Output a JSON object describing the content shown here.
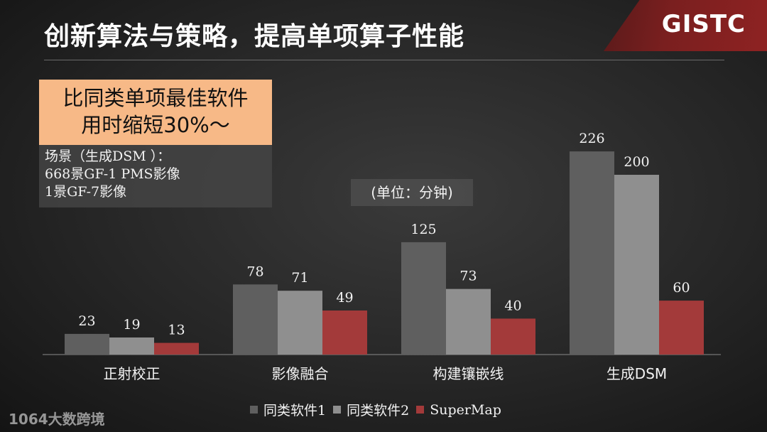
{
  "slide": {
    "title": "创新算法与策略，提高单项算子性能",
    "logo": "GISTC",
    "highlight": [
      "比同类单项最佳软件",
      "用时缩短30%～"
    ],
    "scenario": [
      "场景（生成DSM ）：",
      "668景GF-1 PMS影像",
      "1景GF-7影像"
    ],
    "unit_label": "(单位：分钟)",
    "watermark": "1064大数跨境"
  },
  "colors": {
    "series1": "#5f5f5f",
    "series2": "#8f8f8f",
    "series3": "#a33a3a",
    "background": "#262626"
  },
  "chart_data": {
    "type": "bar",
    "categories": [
      "正射校正",
      "影像融合",
      "构建镶嵌线",
      "生成DSM"
    ],
    "series": [
      {
        "name": "同类软件1",
        "values": [
          23,
          78,
          125,
          226
        ]
      },
      {
        "name": "同类软件2",
        "values": [
          19,
          71,
          73,
          200
        ]
      },
      {
        "name": "SuperMap",
        "values": [
          13,
          49,
          40,
          60
        ]
      }
    ],
    "ylim": [
      0,
      240
    ],
    "grid": false,
    "legend_position": "bottom"
  }
}
